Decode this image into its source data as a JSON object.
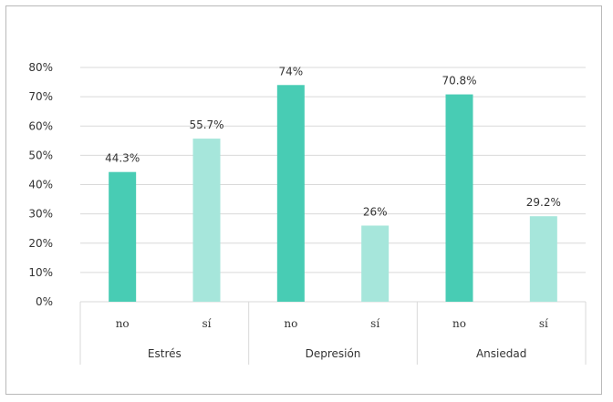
{
  "chart_data": {
    "type": "bar",
    "groups": [
      {
        "name": "Estrés",
        "categories": [
          "no",
          "sí"
        ],
        "values": [
          44.3,
          55.7
        ],
        "labels": [
          "44.3%",
          "55.7%"
        ]
      },
      {
        "name": "Depresión",
        "categories": [
          "no",
          "sí"
        ],
        "values": [
          74,
          26
        ],
        "labels": [
          "74%",
          "26%"
        ]
      },
      {
        "name": "Ansiedad",
        "categories": [
          "no",
          "sí"
        ],
        "values": [
          70.8,
          29.2
        ],
        "labels": [
          "70.8%",
          "29.2%"
        ]
      }
    ],
    "yticks": [
      "0%",
      "10%",
      "20%",
      "30%",
      "40%",
      "50%",
      "60%",
      "70%",
      "80%"
    ],
    "ylim": [
      0,
      80
    ],
    "grid": true,
    "colors": {
      "no": "#48ccb4",
      "si": "#a6e6db",
      "accent": "#48ccb4",
      "grid": "#d9d9d9"
    }
  }
}
